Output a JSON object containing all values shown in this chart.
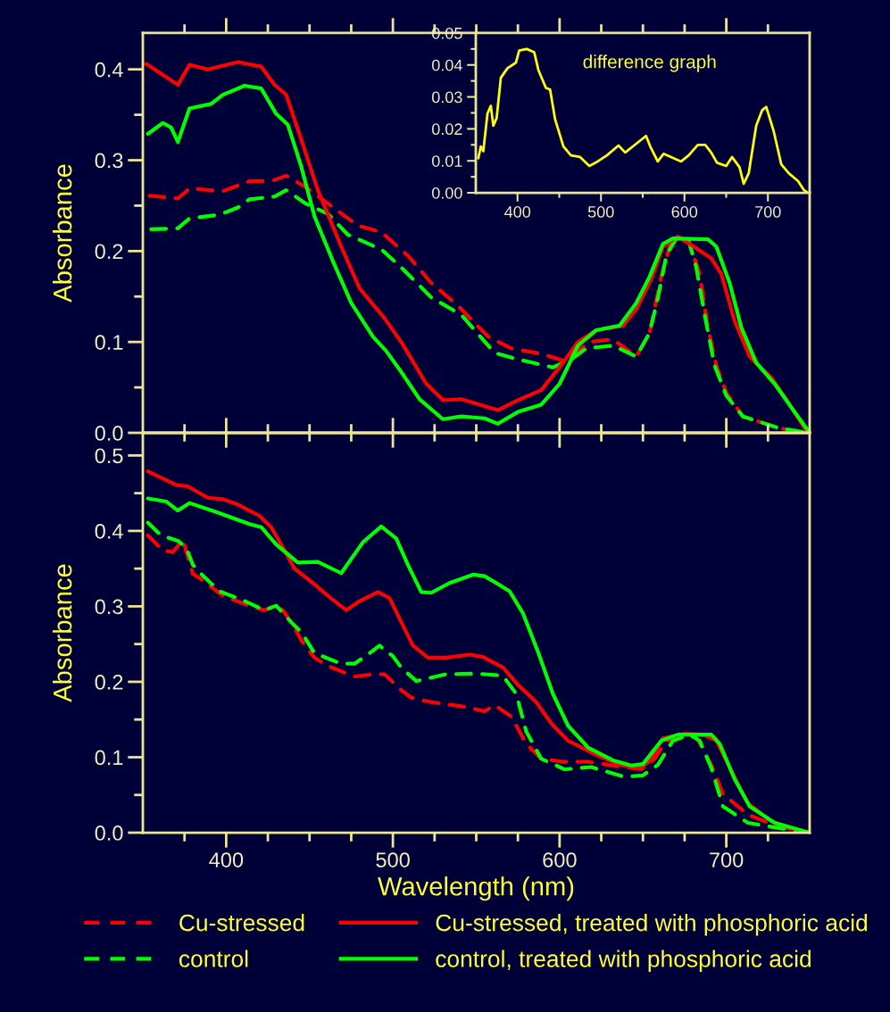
{
  "chart_data": [
    {
      "type": "line",
      "ylabel": "Absorbance",
      "xlim": [
        350,
        750
      ],
      "ylim": [
        0,
        0.44
      ],
      "xticks": [
        {
          "value": 375,
          "label": null
        },
        {
          "value": 400,
          "label": null
        },
        {
          "value": 425,
          "label": null
        },
        {
          "value": 450,
          "label": null
        },
        {
          "value": 475,
          "label": null
        },
        {
          "value": 500,
          "label": null
        },
        {
          "value": 525,
          "label": null
        },
        {
          "value": 550,
          "label": null
        },
        {
          "value": 575,
          "label": null
        },
        {
          "value": 600,
          "label": null
        },
        {
          "value": 625,
          "label": null
        },
        {
          "value": 650,
          "label": null
        },
        {
          "value": 675,
          "label": null
        },
        {
          "value": 700,
          "label": null
        },
        {
          "value": 725,
          "label": null
        }
      ],
      "yticks": [
        {
          "value": 0,
          "label": "0.0"
        },
        {
          "value": 0.05,
          "label": null
        },
        {
          "value": 0.1,
          "label": "0.1"
        },
        {
          "value": 0.15,
          "label": null
        },
        {
          "value": 0.2,
          "label": "0.2"
        },
        {
          "value": 0.25,
          "label": null
        },
        {
          "value": 0.3,
          "label": "0.3"
        },
        {
          "value": 0.35,
          "label": null
        },
        {
          "value": 0.4,
          "label": "0.4"
        }
      ],
      "tick_labels": "y",
      "legend": false,
      "grid": false,
      "series": [
        {
          "color": "#ff0000",
          "line_style": "dashed",
          "x": [
            354,
            371,
            378,
            398,
            414,
            427,
            436,
            448,
            462,
            479,
            493,
            509,
            523,
            539,
            557,
            571,
            589,
            603,
            618,
            632,
            646,
            654,
            661,
            666,
            671,
            678,
            684,
            689,
            694,
            700,
            710,
            732,
            750
          ],
          "values": [
            0.261,
            0.258,
            0.269,
            0.266,
            0.277,
            0.277,
            0.283,
            0.27,
            0.251,
            0.228,
            0.221,
            0.195,
            0.165,
            0.14,
            0.106,
            0.093,
            0.087,
            0.079,
            0.1,
            0.103,
            0.084,
            0.11,
            0.172,
            0.205,
            0.216,
            0.208,
            0.175,
            0.116,
            0.074,
            0.044,
            0.018,
            0.005,
            0
          ]
        },
        {
          "color": "#00ff00",
          "line_style": "dashed",
          "x": [
            355,
            371,
            378,
            396,
            407,
            414,
            429,
            436,
            448,
            461,
            473,
            493,
            505,
            523,
            541,
            561,
            575,
            596,
            607,
            616,
            632,
            646,
            654,
            659,
            664,
            670,
            677,
            682,
            687,
            693,
            700,
            710,
            732,
            750
          ],
          "values": [
            0.224,
            0.225,
            0.236,
            0.24,
            0.248,
            0.257,
            0.26,
            0.267,
            0.252,
            0.241,
            0.218,
            0.202,
            0.182,
            0.149,
            0.13,
            0.088,
            0.081,
            0.072,
            0.081,
            0.093,
            0.096,
            0.084,
            0.11,
            0.149,
            0.195,
            0.214,
            0.214,
            0.182,
            0.13,
            0.074,
            0.041,
            0.018,
            0.005,
            0
          ]
        },
        {
          "color": "#ff0000",
          "line_style": "solid",
          "x": [
            352,
            371,
            378,
            389,
            407,
            421,
            429,
            436,
            445,
            455,
            469,
            480,
            495,
            505,
            520,
            530,
            541,
            563,
            575,
            589,
            602,
            611,
            622,
            638,
            646,
            655,
            662,
            671,
            678,
            691,
            697,
            705,
            714,
            727,
            736,
            748,
            750
          ],
          "values": [
            0.406,
            0.383,
            0.405,
            0.4,
            0.408,
            0.403,
            0.383,
            0.372,
            0.323,
            0.267,
            0.205,
            0.159,
            0.126,
            0.1,
            0.054,
            0.036,
            0.037,
            0.025,
            0.036,
            0.047,
            0.077,
            0.1,
            0.113,
            0.118,
            0.136,
            0.169,
            0.205,
            0.216,
            0.208,
            0.192,
            0.175,
            0.123,
            0.084,
            0.061,
            0.037,
            0.002,
            0
          ]
        },
        {
          "color": "#00ff00",
          "line_style": "solid",
          "x": [
            353,
            362,
            367,
            371,
            378,
            391,
            398,
            411,
            421,
            430,
            437,
            445,
            453,
            464,
            475,
            488,
            496,
            505,
            516,
            530,
            541,
            555,
            563,
            575,
            589,
            600,
            611,
            622,
            636,
            646,
            654,
            662,
            668,
            689,
            694,
            702,
            709,
            718,
            729,
            739,
            750
          ],
          "values": [
            0.329,
            0.341,
            0.336,
            0.32,
            0.357,
            0.362,
            0.372,
            0.382,
            0.379,
            0.351,
            0.339,
            0.293,
            0.238,
            0.189,
            0.143,
            0.106,
            0.09,
            0.067,
            0.037,
            0.015,
            0.018,
            0.016,
            0.01,
            0.023,
            0.031,
            0.054,
            0.096,
            0.113,
            0.118,
            0.143,
            0.172,
            0.208,
            0.214,
            0.213,
            0.205,
            0.165,
            0.116,
            0.077,
            0.054,
            0.028,
            0
          ]
        }
      ]
    },
    {
      "type": "line",
      "annotations": [
        "difference graph"
      ],
      "xlim": [
        350,
        750
      ],
      "ylim": [
        0,
        0.05
      ],
      "xticks": [
        {
          "value": 400,
          "label": "400"
        },
        {
          "value": 450,
          "label": null
        },
        {
          "value": 500,
          "label": "500"
        },
        {
          "value": 550,
          "label": null
        },
        {
          "value": 600,
          "label": "600"
        },
        {
          "value": 650,
          "label": null
        },
        {
          "value": 700,
          "label": "700"
        }
      ],
      "yticks": [
        {
          "value": 0,
          "label": "0.00"
        },
        {
          "value": 0.005,
          "label": null
        },
        {
          "value": 0.01,
          "label": "0.01"
        },
        {
          "value": 0.015,
          "label": null
        },
        {
          "value": 0.02,
          "label": "0.02"
        },
        {
          "value": 0.025,
          "label": null
        },
        {
          "value": 0.03,
          "label": "0.03"
        },
        {
          "value": 0.035,
          "label": null
        },
        {
          "value": 0.04,
          "label": "0.04"
        },
        {
          "value": 0.045,
          "label": null
        },
        {
          "value": 0.05,
          "label": "0.05"
        }
      ],
      "legend": false,
      "grid": false,
      "series": [
        {
          "color": "#ffff00",
          "line_style": "solid",
          "x": [
            353,
            356,
            359,
            364,
            368,
            371,
            375,
            380,
            388,
            398,
            402,
            411,
            420,
            425,
            434,
            439,
            445,
            455,
            464,
            475,
            486,
            496,
            507,
            521,
            529,
            543,
            554,
            559,
            568,
            575,
            596,
            605,
            616,
            625,
            632,
            639,
            650,
            657,
            666,
            671,
            677,
            686,
            693,
            698,
            707,
            716,
            725,
            736,
            743,
            748
          ],
          "values": [
            0.0108,
            0.0145,
            0.013,
            0.0248,
            0.0272,
            0.021,
            0.0234,
            0.036,
            0.039,
            0.0407,
            0.0445,
            0.045,
            0.044,
            0.0384,
            0.0328,
            0.0323,
            0.023,
            0.0145,
            0.0117,
            0.0112,
            0.0084,
            0.0098,
            0.0117,
            0.0148,
            0.0126,
            0.0155,
            0.0178,
            0.0145,
            0.0098,
            0.0122,
            0.0098,
            0.0117,
            0.015,
            0.015,
            0.0126,
            0.0094,
            0.0084,
            0.0112,
            0.008,
            0.0028,
            0.0061,
            0.021,
            0.0258,
            0.0269,
            0.0192,
            0.0089,
            0.0061,
            0.0037,
            0.0009,
            0
          ]
        }
      ]
    },
    {
      "type": "line",
      "xlabel": "Wavelength (nm)",
      "ylabel": "Absorbance",
      "xlim": [
        350,
        750
      ],
      "ylim": [
        0,
        0.53
      ],
      "xticks": [
        {
          "value": 375,
          "label": null
        },
        {
          "value": 400,
          "label": "400"
        },
        {
          "value": 425,
          "label": null
        },
        {
          "value": 450,
          "label": null
        },
        {
          "value": 475,
          "label": null
        },
        {
          "value": 500,
          "label": "500"
        },
        {
          "value": 525,
          "label": null
        },
        {
          "value": 550,
          "label": null
        },
        {
          "value": 575,
          "label": null
        },
        {
          "value": 600,
          "label": "600"
        },
        {
          "value": 625,
          "label": null
        },
        {
          "value": 650,
          "label": null
        },
        {
          "value": 675,
          "label": null
        },
        {
          "value": 700,
          "label": "700"
        },
        {
          "value": 725,
          "label": null
        }
      ],
      "yticks": [
        {
          "value": 0,
          "label": "0.0"
        },
        {
          "value": 0.05,
          "label": null
        },
        {
          "value": 0.1,
          "label": "0.1"
        },
        {
          "value": 0.15,
          "label": null
        },
        {
          "value": 0.2,
          "label": "0.2"
        },
        {
          "value": 0.25,
          "label": null
        },
        {
          "value": 0.3,
          "label": "0.3"
        },
        {
          "value": 0.35,
          "label": null
        },
        {
          "value": 0.4,
          "label": "0.4"
        },
        {
          "value": 0.45,
          "label": null
        },
        {
          "value": 0.5,
          "label": "0.5"
        }
      ],
      "legend": "bottom",
      "grid": false,
      "series": [
        {
          "name": "Cu-stressed",
          "color": "#ff0000",
          "line_style": "dashed",
          "x": [
            353,
            362,
            368,
            374,
            380,
            385,
            398,
            416,
            423,
            430,
            434,
            441,
            445,
            453,
            461,
            477,
            488,
            495,
            505,
            511,
            523,
            543,
            555,
            561,
            571,
            580,
            589,
            602,
            617,
            632,
            649,
            657,
            664,
            675,
            682,
            691,
            698,
            713,
            730,
            750
          ],
          "values": [
            0.394,
            0.374,
            0.372,
            0.388,
            0.343,
            0.336,
            0.314,
            0.299,
            0.295,
            0.301,
            0.295,
            0.272,
            0.255,
            0.232,
            0.221,
            0.207,
            0.21,
            0.21,
            0.189,
            0.179,
            0.173,
            0.167,
            0.161,
            0.169,
            0.154,
            0.118,
            0.098,
            0.094,
            0.094,
            0.089,
            0.084,
            0.098,
            0.122,
            0.131,
            0.127,
            0.09,
            0.051,
            0.024,
            0.009,
            0
          ]
        },
        {
          "name": "control",
          "color": "#00ff00",
          "line_style": "dashed",
          "x": [
            353,
            361,
            371,
            376,
            380,
            385,
            396,
            409,
            423,
            430,
            439,
            445,
            453,
            469,
            477,
            486,
            492,
            500,
            505,
            514,
            532,
            550,
            566,
            574,
            580,
            589,
            603,
            619,
            639,
            650,
            659,
            668,
            678,
            684,
            691,
            698,
            713,
            729,
            750
          ],
          "values": [
            0.411,
            0.394,
            0.387,
            0.378,
            0.355,
            0.343,
            0.32,
            0.309,
            0.295,
            0.301,
            0.279,
            0.266,
            0.238,
            0.224,
            0.224,
            0.238,
            0.248,
            0.234,
            0.219,
            0.201,
            0.21,
            0.211,
            0.208,
            0.184,
            0.134,
            0.098,
            0.084,
            0.087,
            0.074,
            0.076,
            0.09,
            0.122,
            0.13,
            0.122,
            0.086,
            0.035,
            0.013,
            0.007,
            0
          ]
        },
        {
          "name": "Cu-stressed, treated with phosphoric acid",
          "color": "#ff0000",
          "line_style": "solid",
          "x": [
            353,
            370,
            377,
            389,
            398,
            407,
            420,
            427,
            434,
            441,
            452,
            461,
            472,
            480,
            491,
            498,
            505,
            512,
            521,
            532,
            546,
            554,
            566,
            575,
            586,
            595,
            605,
            623,
            638,
            649,
            654,
            662,
            675,
            686,
            694,
            704,
            713,
            727,
            739,
            750
          ],
          "values": [
            0.479,
            0.461,
            0.459,
            0.444,
            0.442,
            0.435,
            0.42,
            0.405,
            0.378,
            0.35,
            0.331,
            0.314,
            0.295,
            0.307,
            0.319,
            0.311,
            0.279,
            0.248,
            0.232,
            0.232,
            0.236,
            0.233,
            0.219,
            0.196,
            0.173,
            0.145,
            0.122,
            0.102,
            0.089,
            0.087,
            0.095,
            0.125,
            0.131,
            0.13,
            0.122,
            0.078,
            0.039,
            0.015,
            0.006,
            0
          ]
        },
        {
          "name": "control, treated with phosphoric acid",
          "color": "#00ff00",
          "line_style": "solid",
          "x": [
            353,
            364,
            371,
            378,
            394,
            414,
            421,
            430,
            443,
            455,
            469,
            482,
            493,
            502,
            509,
            517,
            523,
            534,
            548,
            555,
            562,
            570,
            578,
            587,
            596,
            605,
            617,
            632,
            643,
            650,
            661,
            671,
            684,
            691,
            696,
            705,
            714,
            729,
            750
          ],
          "values": [
            0.443,
            0.439,
            0.427,
            0.437,
            0.425,
            0.409,
            0.405,
            0.382,
            0.358,
            0.359,
            0.344,
            0.385,
            0.406,
            0.39,
            0.355,
            0.319,
            0.318,
            0.331,
            0.342,
            0.34,
            0.331,
            0.32,
            0.291,
            0.24,
            0.184,
            0.142,
            0.113,
            0.096,
            0.089,
            0.091,
            0.122,
            0.13,
            0.13,
            0.13,
            0.118,
            0.071,
            0.035,
            0.013,
            0
          ]
        }
      ]
    }
  ]
}
